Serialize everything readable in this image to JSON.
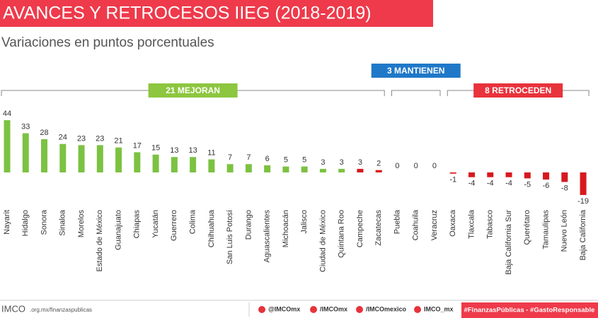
{
  "chart_data": {
    "type": "bar",
    "title": "AVANCES Y RETROCESOS IIEG (2018-2019)",
    "subtitle": "Variaciones en puntos porcentuales",
    "categories": [
      "Nayarit",
      "Hidalgo",
      "Sonora",
      "Sinaloa",
      "Morelos",
      "Estado de México",
      "Guanajuato",
      "Chiapas",
      "Yucatán",
      "Guerrero",
      "Colima",
      "Chihuahua",
      "San Luis Potosí",
      "Durango",
      "Aguascalientes",
      "Michoacán",
      "Jalisco",
      "Ciudad de México",
      "Quintana Roo",
      "Campeche",
      "Zacatecas",
      "Puebla",
      "Coahuila",
      "Veracruz",
      "Oaxaca",
      "Tlaxcala",
      "Tabasco",
      "Baja California Sur",
      "Querétaro",
      "Tamaulipas",
      "Nuevo León",
      "Baja California"
    ],
    "values": [
      44,
      33,
      28,
      24,
      23,
      23,
      21,
      17,
      15,
      13,
      13,
      11,
      7,
      7,
      6,
      5,
      5,
      3,
      3,
      3,
      2,
      0,
      0,
      0,
      -1,
      -4,
      -4,
      -4,
      -5,
      -6,
      -8,
      -19
    ],
    "colors": [
      "#7cc242",
      "#7cc242",
      "#7cc242",
      "#7cc242",
      "#7cc242",
      "#7cc242",
      "#7cc242",
      "#7cc242",
      "#7cc242",
      "#7cc242",
      "#7cc242",
      "#7cc242",
      "#7cc242",
      "#7cc242",
      "#7cc242",
      "#7cc242",
      "#7cc242",
      "#7cc242",
      "#7cc242",
      "#d7191f",
      "#d7191f",
      "#7cc242",
      "#7cc242",
      "#7cc242",
      "#d7191f",
      "#d7191f",
      "#d7191f",
      "#d7191f",
      "#d7191f",
      "#d7191f",
      "#d7191f",
      "#d7191f"
    ],
    "groups": [
      {
        "label": "21 MEJORAN",
        "size": 21,
        "color": "#8dc63f"
      },
      {
        "label": "3 MANTIENEN",
        "size": 3,
        "color": "#1f78c8"
      },
      {
        "label": "8 RETROCEDEN",
        "size": 8,
        "color": "#e8323c"
      }
    ]
  },
  "footer": {
    "logo": "IMCO",
    "url": ".org.mx/finanzaspublicas",
    "twitter": "@IMCOmx",
    "facebook": "/IMCOmx",
    "youtube": "/IMCOmexico",
    "instagram": "IMCO_mx",
    "hashtags": "#FinanzasPúblicas - #GastoResponsable"
  }
}
